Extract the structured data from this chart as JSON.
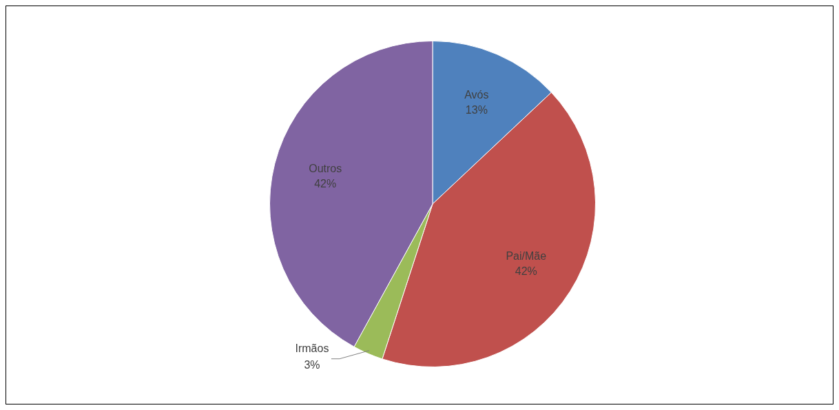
{
  "chart_data": {
    "type": "pie",
    "categories": [
      "Avós",
      "Pai/Mãe",
      "Irmãos",
      "Outros"
    ],
    "values": [
      13,
      42,
      3,
      42
    ],
    "value_labels": [
      "13%",
      "42%",
      "3%",
      "42%"
    ],
    "colors": [
      "#4f81bd",
      "#c0504d",
      "#9bbb59",
      "#8064a2"
    ],
    "legend": false
  }
}
